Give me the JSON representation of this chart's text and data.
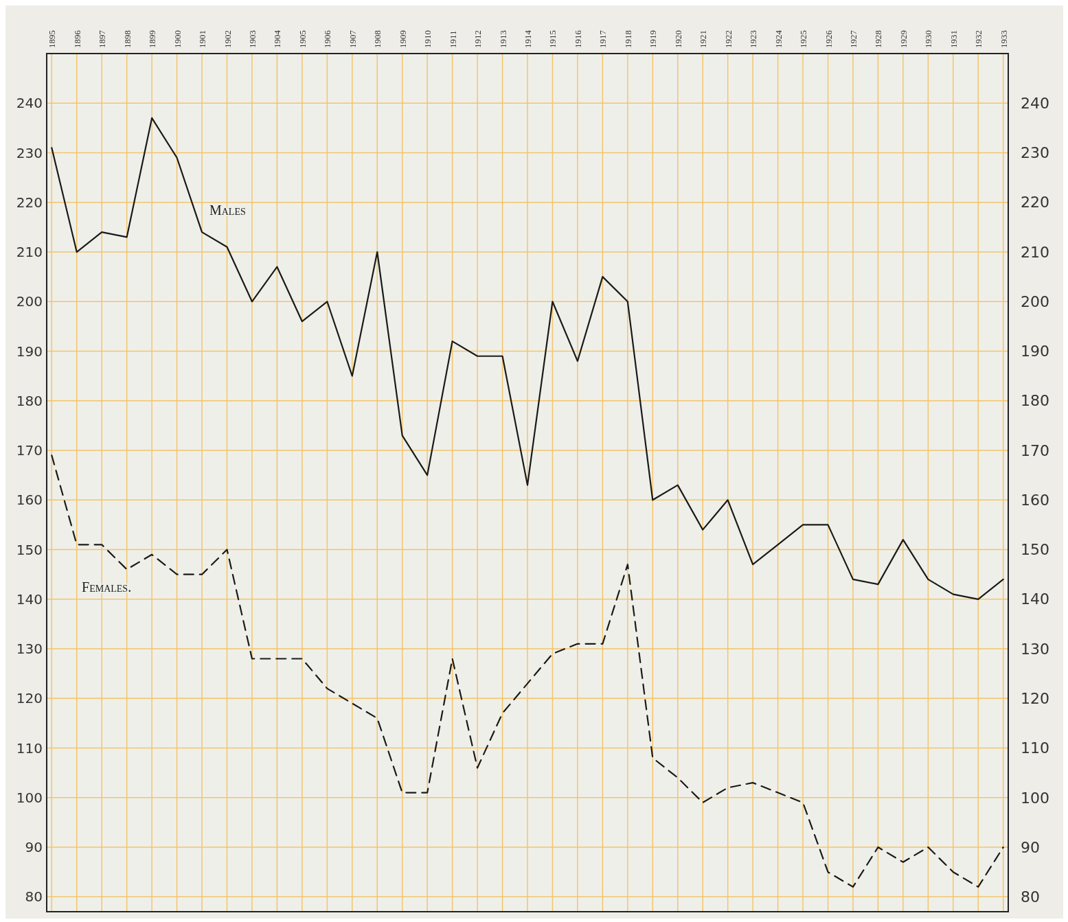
{
  "chart_data": {
    "type": "line",
    "x": [
      1895,
      1896,
      1897,
      1898,
      1899,
      1900,
      1901,
      1902,
      1903,
      1904,
      1905,
      1906,
      1907,
      1908,
      1909,
      1910,
      1911,
      1912,
      1913,
      1914,
      1915,
      1916,
      1917,
      1918,
      1919,
      1920,
      1921,
      1922,
      1923,
      1924,
      1925,
      1926,
      1927,
      1928,
      1929,
      1930,
      1931,
      1932,
      1933
    ],
    "series": [
      {
        "name": "Males",
        "color": "#1a1a1a",
        "line_style": "solid",
        "values": [
          231,
          210,
          214,
          213,
          237,
          229,
          214,
          211,
          200,
          207,
          196,
          200,
          185,
          210,
          173,
          165,
          192,
          189,
          189,
          163,
          200,
          188,
          205,
          200,
          160,
          163,
          154,
          160,
          147,
          151,
          155,
          155,
          144,
          143,
          152,
          144,
          141,
          140,
          144
        ]
      },
      {
        "name": "Females.",
        "color": "#1a1a1a",
        "line_style": "dashed",
        "values": [
          169,
          151,
          151,
          146,
          149,
          145,
          145,
          150,
          128,
          128,
          128,
          122,
          119,
          116,
          101,
          101,
          128,
          106,
          117,
          123,
          129,
          131,
          131,
          147,
          108,
          104,
          99,
          102,
          103,
          101,
          99,
          85,
          82,
          90,
          87,
          90,
          85,
          82,
          90
        ]
      }
    ],
    "xlim": [
      1894.8,
      1933.2
    ],
    "xticks": [
      1895,
      1896,
      1897,
      1898,
      1899,
      1900,
      1901,
      1902,
      1903,
      1904,
      1905,
      1906,
      1907,
      1908,
      1909,
      1910,
      1911,
      1912,
      1913,
      1914,
      1915,
      1916,
      1917,
      1918,
      1919,
      1920,
      1921,
      1922,
      1923,
      1924,
      1925,
      1926,
      1927,
      1928,
      1929,
      1930,
      1931,
      1932,
      1933
    ],
    "ylim": [
      77,
      250
    ],
    "yticks": [
      80,
      90,
      100,
      110,
      120,
      130,
      140,
      150,
      160,
      170,
      180,
      190,
      200,
      210,
      220,
      230,
      240
    ],
    "y2lim": [
      77,
      250
    ],
    "y2ticks": [
      80,
      90,
      100,
      110,
      120,
      130,
      140,
      150,
      160,
      170,
      180,
      190,
      200,
      210,
      220,
      230,
      240
    ],
    "grid": true
  }
}
